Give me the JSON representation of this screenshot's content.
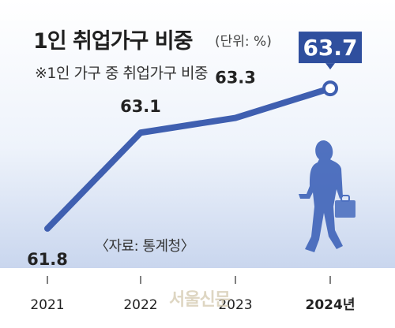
{
  "chart_data": {
    "type": "line",
    "title": "1인 취업가구 비중",
    "unit_label": "(단위: %)",
    "subtitle": "※1인 가구 중 취업가구 비중",
    "source": "〈자료: 통계청〉",
    "categories": [
      "2021",
      "2022",
      "2023",
      "2024년"
    ],
    "values": [
      61.8,
      63.1,
      63.3,
      63.7
    ],
    "data_labels": [
      "61.8",
      "63.1",
      "63.3",
      "63.7"
    ],
    "highlight_index": 3,
    "ylim": [
      61.5,
      64.0
    ],
    "grid": false,
    "line_color": "#3f5fb0",
    "highlight_color": "#2f4f9e"
  },
  "watermark": "서울신문"
}
